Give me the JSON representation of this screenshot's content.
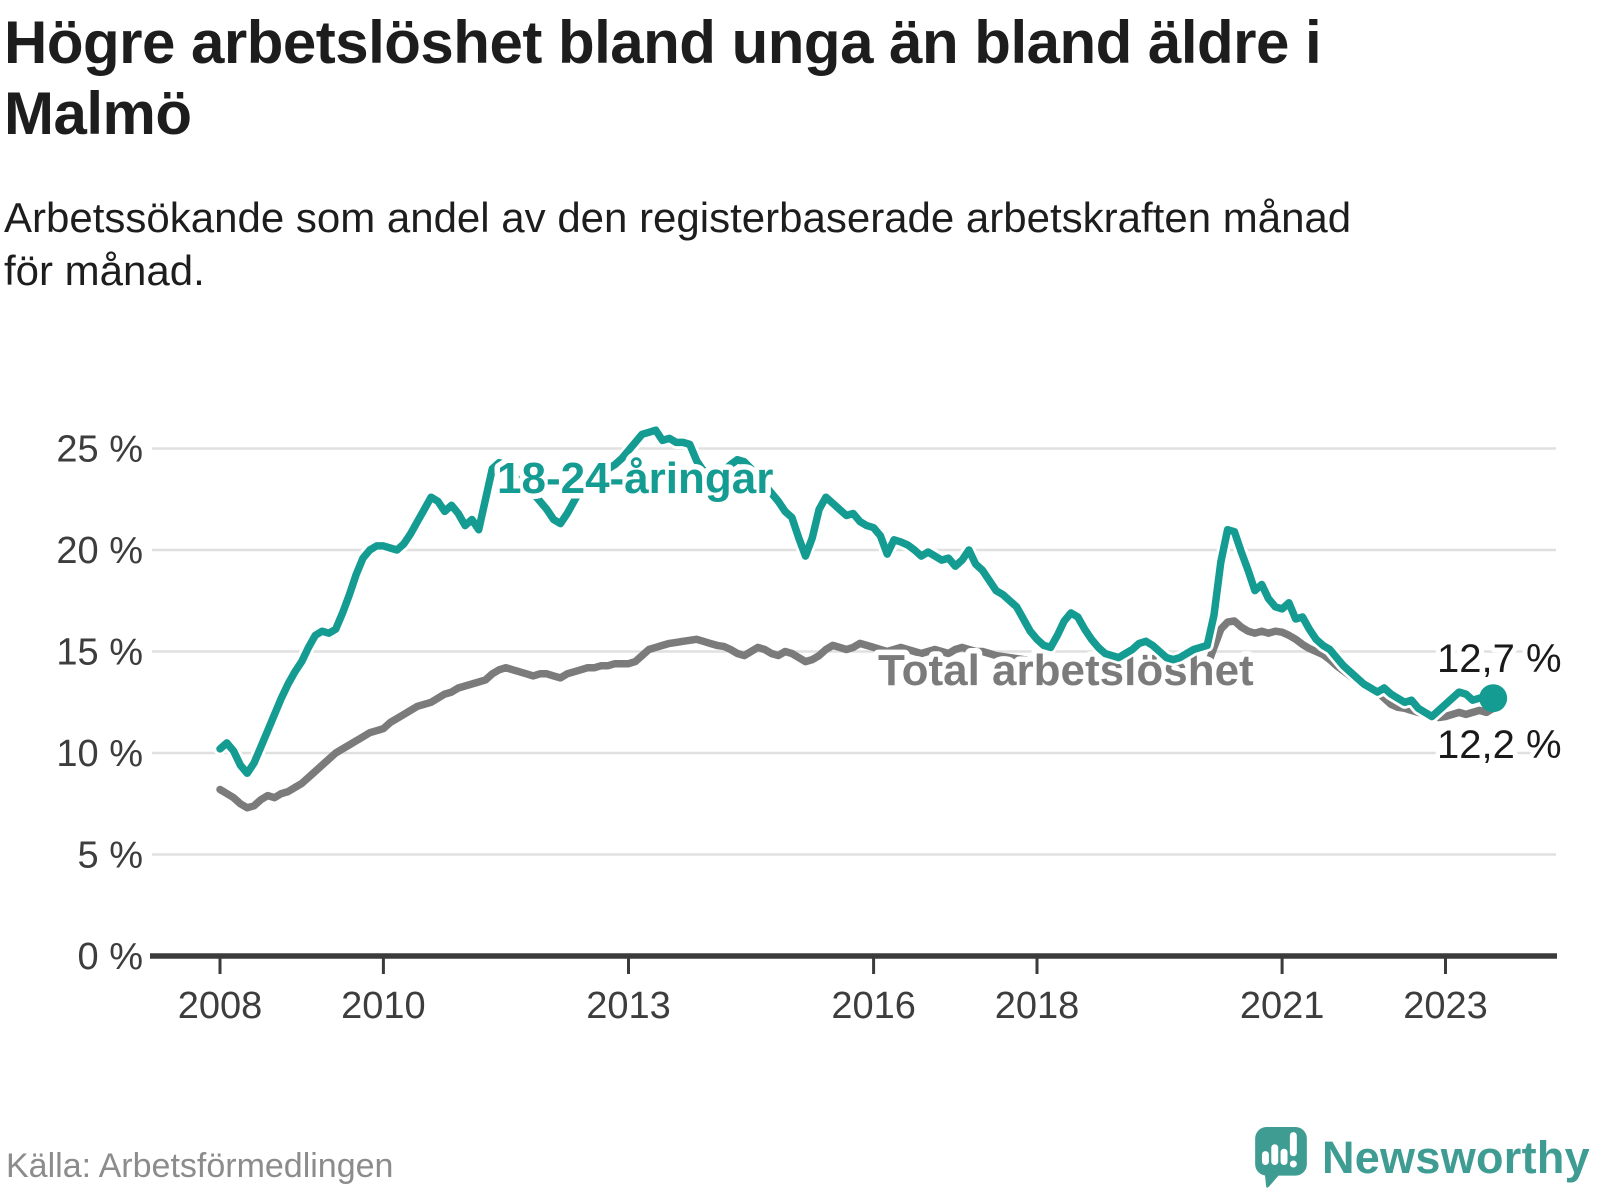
{
  "header": {
    "title_lines": [
      "Högre arbetslöshet bland unga än bland äldre i",
      "Malmö"
    ],
    "subtitle_lines": [
      "Arbetssökande som andel av den registerbaserade arbetskraften månad",
      "för månad."
    ]
  },
  "footer": {
    "source": "Källa: Arbetsförmedlingen",
    "brand": "Newsworthy",
    "logo_icon": "newsworthy-speech-bubble-bar-chart-icon"
  },
  "colors": {
    "accent_teal": "#149c92",
    "line_gray": "#7b7b7b",
    "axis": "#3b3b3b",
    "grid": "#e0e0e0",
    "dark_text": "#1d1d1d",
    "tick_text": "#3d3d3d",
    "end_label_text": "#1a1a1a",
    "source_text": "#8c8c8c",
    "logo_teal": "#3f9c93"
  },
  "chart_data": {
    "type": "line",
    "title": "Högre arbetslöshet bland unga än bland äldre i Malmö",
    "subtitle": "Arbetssökande som andel av den registerbaserade arbetskraften månad för månad.",
    "x_start": "2008-01",
    "x_end": "2023-08",
    "frequency": "monthly",
    "grid": "horizontal",
    "legend": "inline-labels",
    "ylim": [
      0,
      26.5
    ],
    "y_axis_ticks": [
      {
        "label": "0 %",
        "value": 0
      },
      {
        "label": "5 %",
        "value": 5
      },
      {
        "label": "10 %",
        "value": 10
      },
      {
        "label": "15 %",
        "value": 15
      },
      {
        "label": "20 %",
        "value": 20
      },
      {
        "label": "25 %",
        "value": 25
      }
    ],
    "x_axis_ticks": [
      {
        "label": "2008",
        "year": 2008
      },
      {
        "label": "2010",
        "year": 2010
      },
      {
        "label": "2013",
        "year": 2013
      },
      {
        "label": "2016",
        "year": 2016
      },
      {
        "label": "2018",
        "year": 2018
      },
      {
        "label": "2021",
        "year": 2021
      },
      {
        "label": "2023",
        "year": 2023
      }
    ],
    "series": [
      {
        "id": "youth",
        "name": "18-24-åringar",
        "color": "#149c92",
        "values": [
          10.2,
          10.5,
          10.1,
          9.4,
          9.0,
          9.5,
          10.3,
          11.1,
          11.9,
          12.7,
          13.4,
          14.0,
          14.5,
          15.2,
          15.8,
          16.0,
          15.9,
          16.1,
          16.9,
          17.8,
          18.8,
          19.6,
          20.0,
          20.2,
          20.2,
          20.1,
          20.0,
          20.3,
          20.8,
          21.4,
          22.0,
          22.6,
          22.4,
          21.9,
          22.2,
          21.8,
          21.2,
          21.5,
          21.0,
          22.5,
          24.0,
          24.3,
          24.2,
          24.0,
          23.6,
          23.2,
          22.8,
          22.4,
          22.0,
          21.5,
          21.3,
          21.8,
          22.4,
          23.0,
          23.5,
          23.9,
          24.1,
          24.0,
          24.2,
          24.5,
          24.9,
          25.3,
          25.7,
          25.8,
          25.9,
          25.4,
          25.5,
          25.3,
          25.3,
          25.2,
          24.4,
          23.9,
          23.9,
          23.8,
          23.9,
          24.2,
          24.45,
          24.35,
          24.0,
          23.6,
          23.2,
          22.8,
          22.4,
          21.9,
          21.6,
          20.6,
          19.7,
          20.6,
          22.0,
          22.6,
          22.3,
          22.0,
          21.7,
          21.8,
          21.4,
          21.2,
          21.1,
          20.7,
          19.8,
          20.5,
          20.4,
          20.25,
          20.0,
          19.7,
          19.9,
          19.7,
          19.5,
          19.6,
          19.2,
          19.5,
          20.0,
          19.3,
          19.0,
          18.5,
          18.0,
          17.8,
          17.5,
          17.2,
          16.6,
          16.0,
          15.6,
          15.3,
          15.2,
          15.8,
          16.5,
          16.9,
          16.7,
          16.1,
          15.6,
          15.2,
          14.9,
          14.8,
          14.7,
          14.9,
          15.1,
          15.4,
          15.5,
          15.3,
          15.0,
          14.7,
          14.6,
          14.7,
          14.9,
          15.1,
          15.2,
          15.3,
          16.8,
          19.4,
          21.0,
          20.9,
          19.9,
          19.0,
          18.0,
          18.3,
          17.6,
          17.2,
          17.1,
          17.4,
          16.6,
          16.7,
          16.1,
          15.6,
          15.3,
          15.1,
          14.7,
          14.3,
          14.0,
          13.7,
          13.4,
          13.2,
          13.0,
          13.2,
          12.9,
          12.7,
          12.5,
          12.6,
          12.2,
          12.0,
          11.8,
          12.1,
          12.4,
          12.7,
          13.0,
          12.9,
          12.6,
          12.7,
          12.8,
          12.7
        ]
      },
      {
        "id": "total",
        "name": "Total arbetslöshet",
        "color": "#7b7b7b",
        "values": [
          8.2,
          8.0,
          7.8,
          7.5,
          7.3,
          7.4,
          7.7,
          7.9,
          7.8,
          8.0,
          8.1,
          8.3,
          8.5,
          8.8,
          9.1,
          9.4,
          9.7,
          10.0,
          10.2,
          10.4,
          10.6,
          10.8,
          11.0,
          11.1,
          11.2,
          11.5,
          11.7,
          11.9,
          12.1,
          12.3,
          12.4,
          12.5,
          12.7,
          12.9,
          13.0,
          13.2,
          13.3,
          13.4,
          13.5,
          13.6,
          13.9,
          14.1,
          14.2,
          14.1,
          14.0,
          13.9,
          13.8,
          13.9,
          13.9,
          13.8,
          13.7,
          13.9,
          14.0,
          14.1,
          14.2,
          14.2,
          14.3,
          14.3,
          14.4,
          14.4,
          14.4,
          14.5,
          14.8,
          15.1,
          15.2,
          15.3,
          15.4,
          15.45,
          15.5,
          15.55,
          15.6,
          15.5,
          15.4,
          15.3,
          15.25,
          15.1,
          14.9,
          14.8,
          15.0,
          15.2,
          15.1,
          14.9,
          14.8,
          15.0,
          14.9,
          14.7,
          14.5,
          14.6,
          14.8,
          15.1,
          15.3,
          15.2,
          15.1,
          15.2,
          15.4,
          15.3,
          15.2,
          15.1,
          15.0,
          15.1,
          15.2,
          15.1,
          15.0,
          14.9,
          15.0,
          15.1,
          15.0,
          14.9,
          15.1,
          15.2,
          15.1,
          15.0,
          15.0,
          14.9,
          14.8,
          14.75,
          14.7,
          14.65,
          14.6,
          14.55,
          14.5,
          14.45,
          14.4,
          14.35,
          14.3,
          14.25,
          14.2,
          14.15,
          14.1,
          14.05,
          14.0,
          14.0,
          13.95,
          13.9,
          13.9,
          13.85,
          13.85,
          13.8,
          13.8,
          13.85,
          13.9,
          13.9,
          13.95,
          14.0,
          14.1,
          14.3,
          15.2,
          16.1,
          16.45,
          16.5,
          16.2,
          16.0,
          15.9,
          16.0,
          15.9,
          16.0,
          15.95,
          15.8,
          15.6,
          15.35,
          15.15,
          15.0,
          14.85,
          14.6,
          14.3,
          14.05,
          13.8,
          13.55,
          13.4,
          13.2,
          13.0,
          12.7,
          12.4,
          12.25,
          12.2,
          12.1,
          12.0,
          11.9,
          11.8,
          11.75,
          11.8,
          11.9,
          12.0,
          11.9,
          12.0,
          12.1,
          12.0,
          12.2
        ]
      }
    ],
    "end_labels": [
      {
        "text": "12,7 %",
        "series": "youth"
      },
      {
        "text": "12,2 %",
        "series": "total"
      }
    ],
    "end_dot": {
      "series": "youth"
    }
  }
}
